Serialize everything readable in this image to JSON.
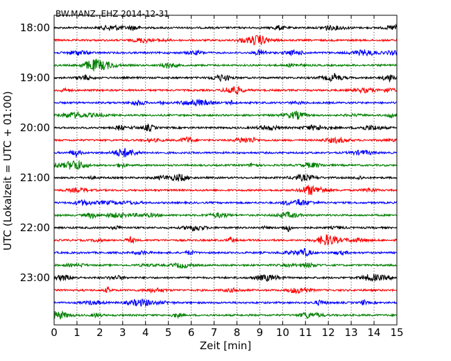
{
  "chart_data": {
    "type": "line",
    "title": "BW.MANZ..EHZ 2014-12-31",
    "xlabel": "Zeit  [min]",
    "ylabel": "UTC (Lokalzeit = UTC + 01:00)",
    "xlim": [
      0,
      15
    ],
    "x_ticks": [
      "0",
      "1",
      "2",
      "3",
      "4",
      "5",
      "6",
      "7",
      "8",
      "9",
      "10",
      "11",
      "12",
      "13",
      "14",
      "15"
    ],
    "y_tick_labels": [
      "18:00",
      "19:00",
      "20:00",
      "21:00",
      "22:00",
      "23:00"
    ],
    "trace_interval_minutes": 15,
    "trace_count": 24,
    "start_time": "18:00",
    "grid": "vertical dotted",
    "colors": [
      "#000000",
      "#ff0000",
      "#0000ff",
      "#008000"
    ]
  }
}
